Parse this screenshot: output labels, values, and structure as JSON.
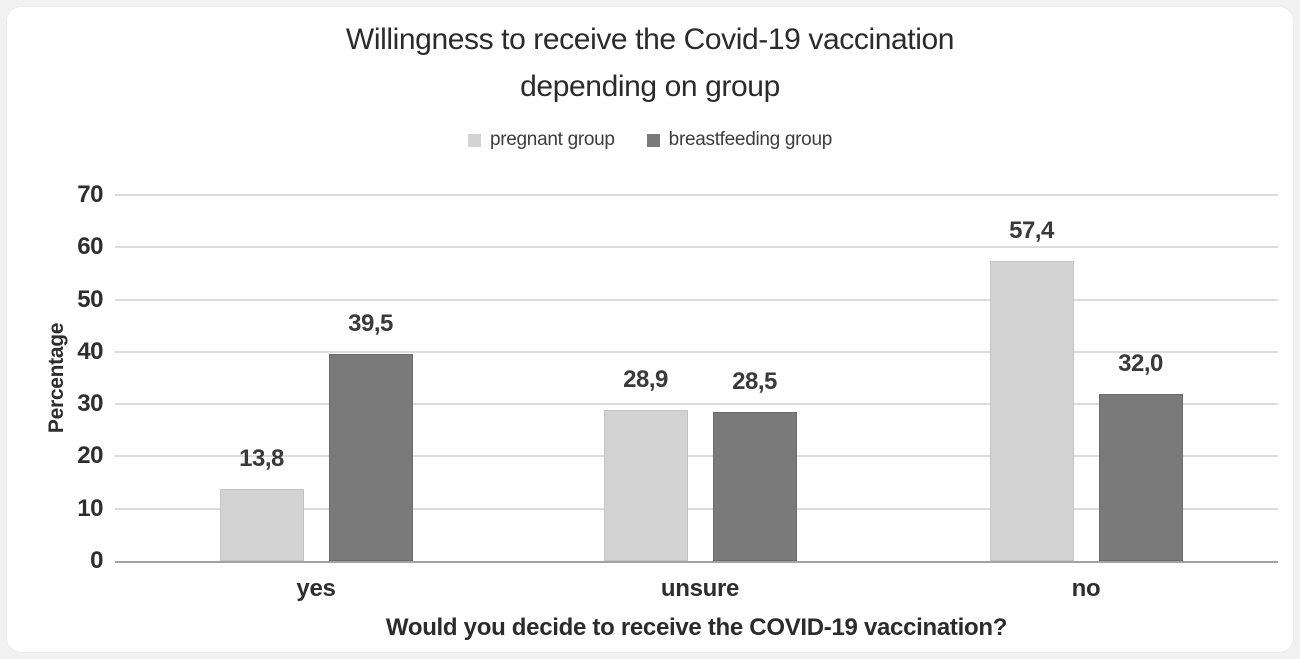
{
  "page": {
    "background_color": "#f1f1f1",
    "card_color": "#ffffff"
  },
  "chart_data": {
    "type": "bar",
    "title_lines": [
      "Willingness to receive the Covid-19 vaccination",
      "depending on group"
    ],
    "categories": [
      "yes",
      "unsure",
      "no"
    ],
    "series": [
      {
        "name": "pregnant group",
        "color": "#d3d3d3",
        "border_color": "#c3c3c3",
        "values": [
          13.8,
          28.9,
          57.4
        ],
        "labels": [
          "13,8",
          "28,9",
          "57,4"
        ]
      },
      {
        "name": "breastfeeding group",
        "color": "#7a7a7a",
        "border_color": "#6b6b6b",
        "values": [
          39.5,
          28.5,
          32.0
        ],
        "labels": [
          "39,5",
          "28,5",
          "32,0"
        ]
      }
    ],
    "xlabel": "Would you decide to receive the COVID-19 vaccination?",
    "ylabel": "Percentage",
    "ylim": [
      0,
      70
    ],
    "yticks": [
      "0",
      "10",
      "20",
      "30",
      "40",
      "50",
      "60",
      "70"
    ],
    "grid": true,
    "legend_position": "top-center",
    "gridline_color": "#dcdcdc",
    "axis_line_color": "#a3a3a3",
    "text_color": "#2e2e2e"
  }
}
